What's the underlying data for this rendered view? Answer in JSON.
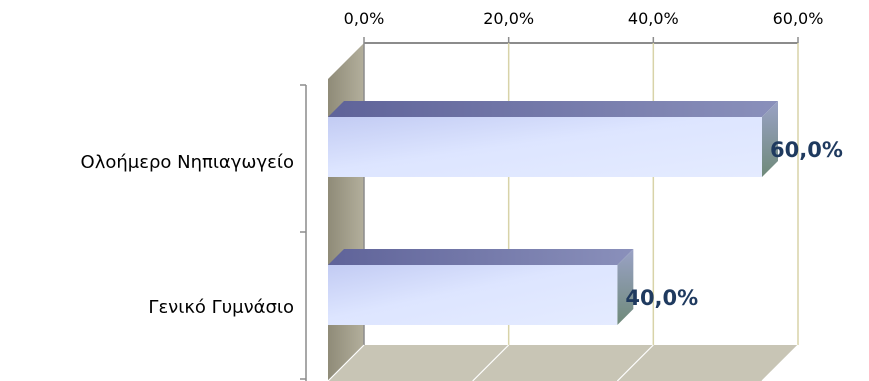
{
  "chart_data": {
    "type": "bar",
    "orientation": "horizontal",
    "style": "3d",
    "categories": [
      "Ολοήμερο Νηπιαγωγείο",
      "Γενικό Γυμνάσιο"
    ],
    "values": [
      60.0,
      40.0
    ],
    "value_labels": [
      "60,0%",
      "40,0%"
    ],
    "xlim": [
      0,
      60
    ],
    "x_ticks": [
      0,
      20,
      40,
      60
    ],
    "x_tick_labels": [
      "0,0%",
      "20,0%",
      "40,0%",
      "60,0%"
    ],
    "x_axis_position": "top",
    "grid": true,
    "legend": "none",
    "title": "",
    "xlabel": "",
    "ylabel": "",
    "colors": {
      "bar_front_light": "#dfe6ff",
      "bar_front_dark": "#a7b1dc",
      "bar_top": "#6b70a6",
      "bar_side": "#8e97b9",
      "wall_side": "#a39f8d",
      "floor": "#c8c5b5",
      "grid": "#d8d3a8",
      "axis": "#8c8c8c",
      "label_text": "#1f3a5f"
    }
  }
}
